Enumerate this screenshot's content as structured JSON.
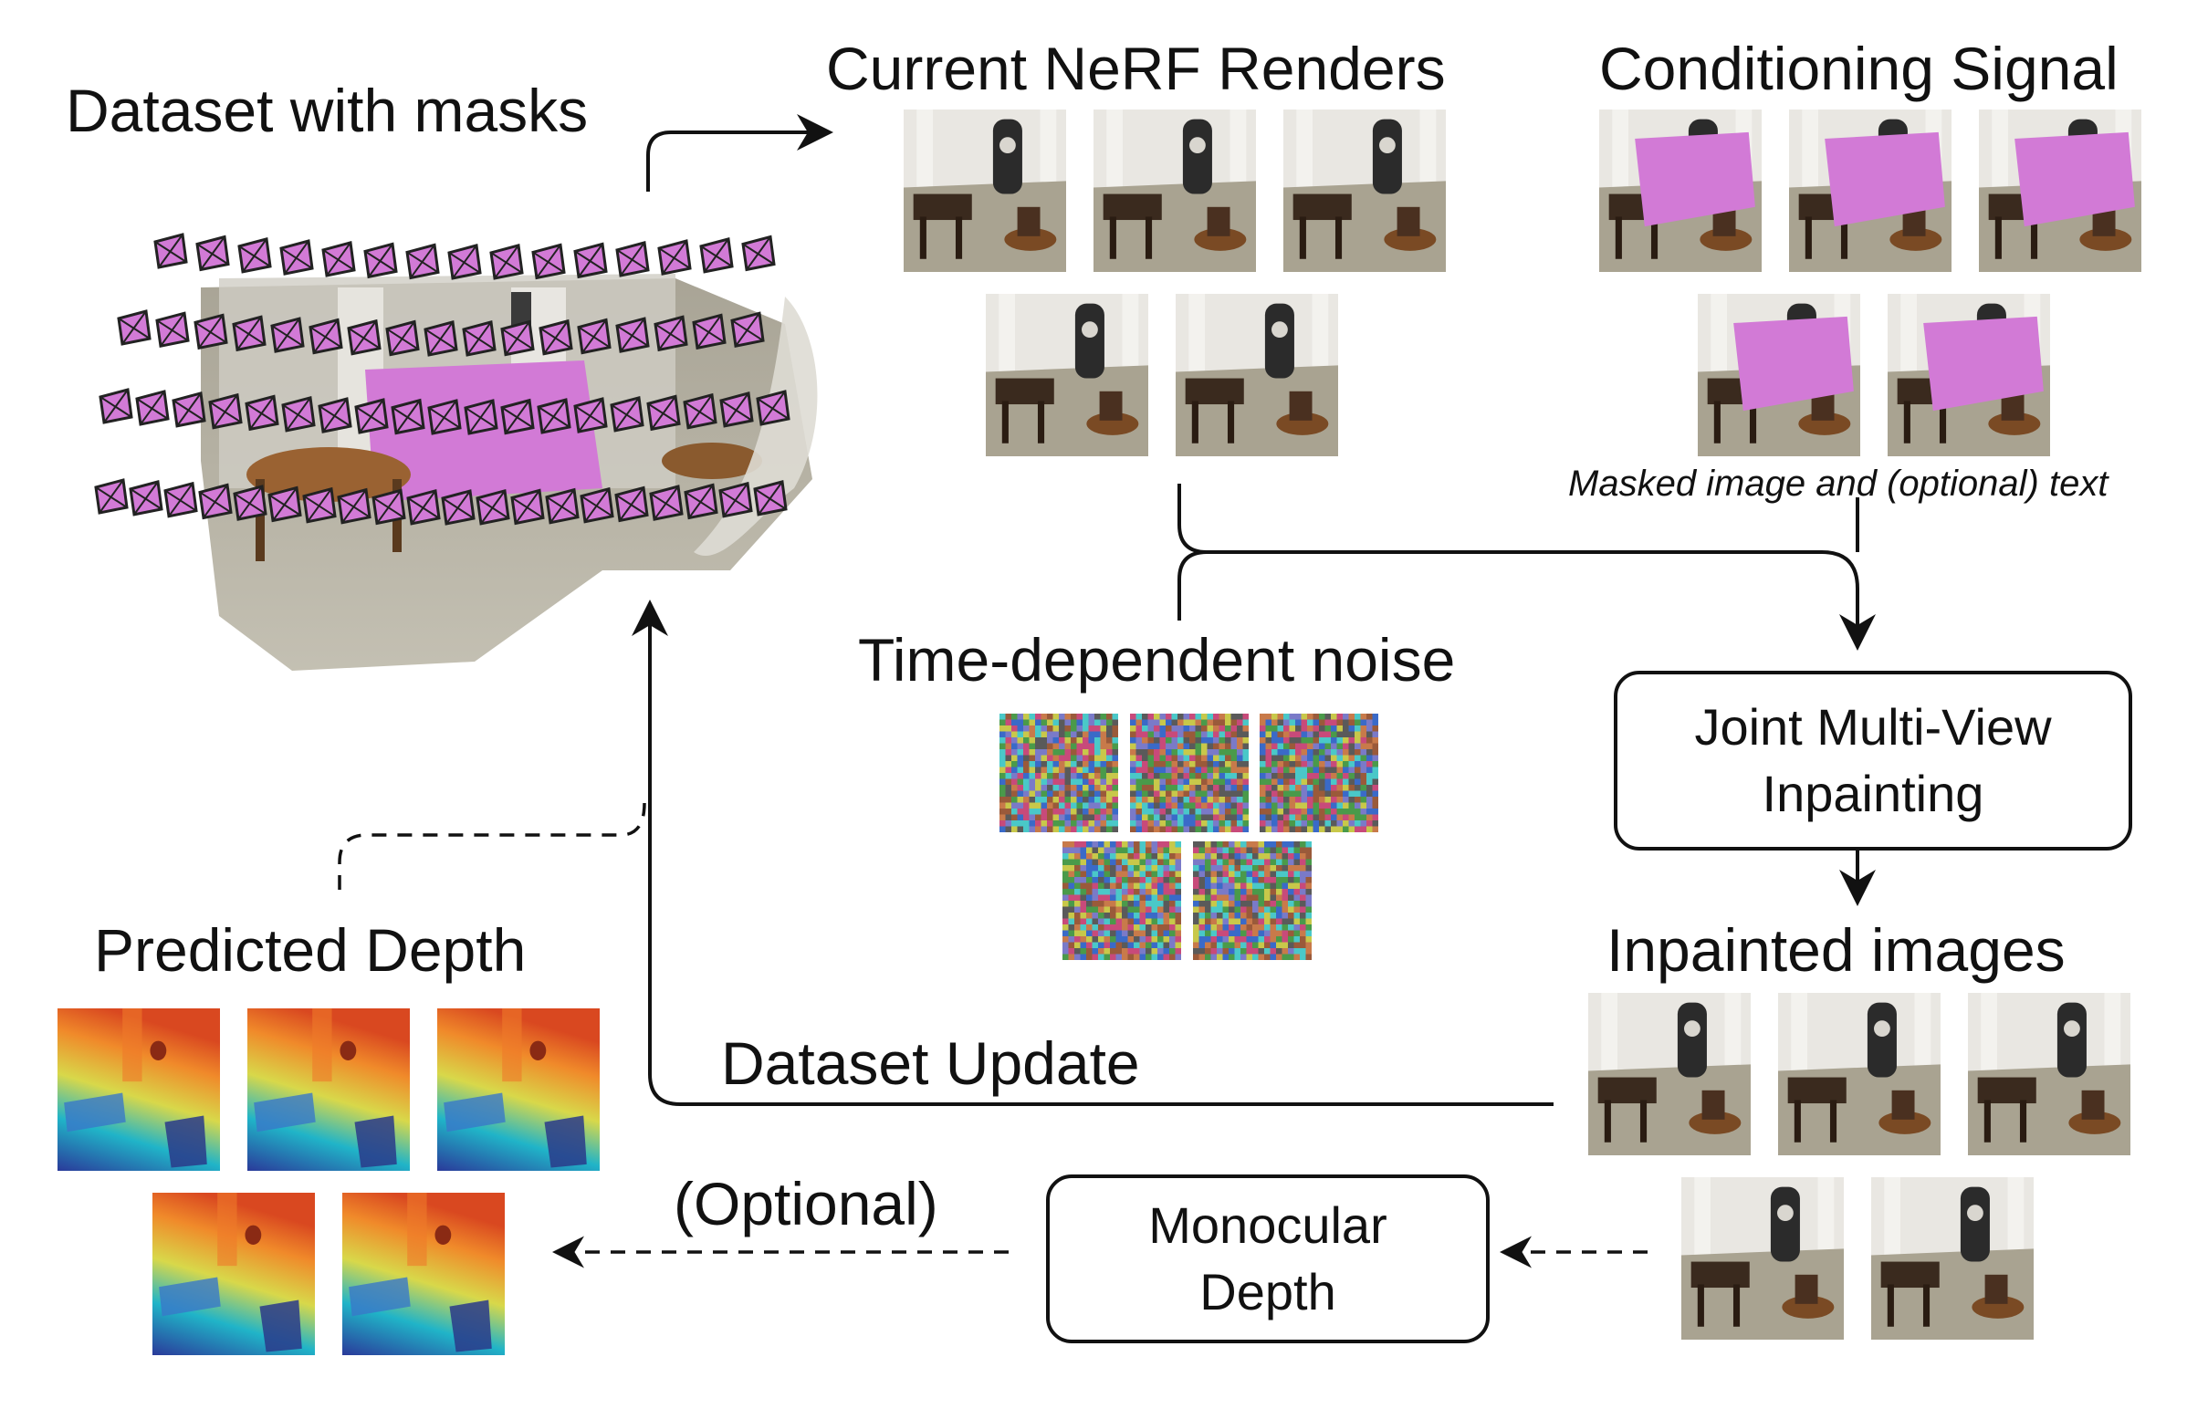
{
  "labels": {
    "dataset_with_masks": "Dataset with masks",
    "current_renders": "Current NeRF Renders",
    "conditioning_signal": "Conditioning Signal",
    "masked_caption": "Masked image and (optional) text",
    "noise": "Time-dependent noise",
    "inpainted_images": "Inpainted images",
    "predicted_depth": "Predicted Depth",
    "dataset_update": "Dataset Update",
    "optional": "(Optional)"
  },
  "boxes": {
    "joint_line1": "Joint Multi-View",
    "joint_line2": "Inpainting",
    "mono_line1": "Monocular",
    "mono_line2": "Depth"
  },
  "colors": {
    "mask": "#d27ad6",
    "line": "#111111"
  },
  "icons": {
    "render": "room-render-thumbnail",
    "masked": "masked-room-thumbnail",
    "noise": "noise-thumbnail",
    "depth": "depth-map-thumbnail",
    "scene": "point-cloud-scene-with-cameras"
  }
}
